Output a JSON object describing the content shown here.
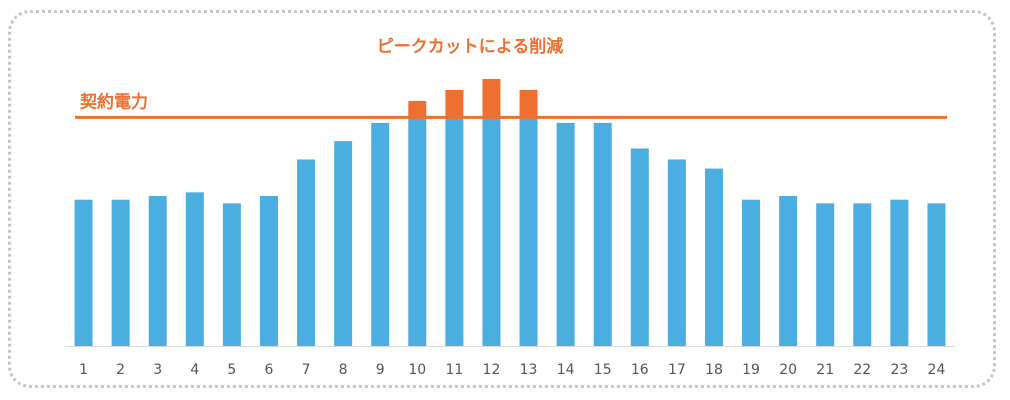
{
  "chart_data": {
    "type": "bar",
    "title": "",
    "xlabel": "",
    "ylabel": "",
    "categories": [
      "1",
      "2",
      "3",
      "4",
      "5",
      "6",
      "7",
      "8",
      "9",
      "10",
      "11",
      "12",
      "13",
      "14",
      "15",
      "16",
      "17",
      "18",
      "19",
      "20",
      "21",
      "22",
      "23",
      "24"
    ],
    "values": [
      40,
      40,
      41,
      42,
      39,
      41,
      51,
      56,
      61,
      67,
      70,
      73,
      70,
      61,
      61,
      54,
      51,
      48.5,
      40,
      41,
      39,
      39,
      40,
      39
    ],
    "ylim": [
      0,
      76
    ],
    "grid": false,
    "contract_power": {
      "label": "契約電力",
      "value": 62.5
    },
    "peak_cut": {
      "label": "ピークカットによる削減"
    },
    "colors": {
      "bar": "#4aaee0",
      "over": "#ed7030",
      "line": "#ed7030",
      "axis": "#d9d9d9"
    }
  }
}
